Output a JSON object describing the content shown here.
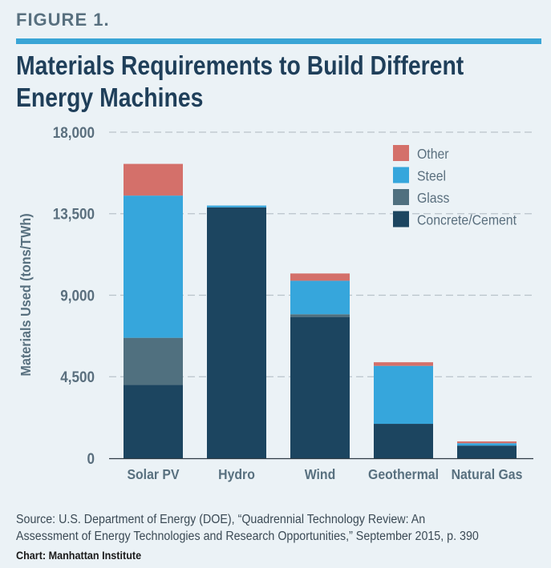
{
  "figure_label": "FIGURE 1.",
  "title": "Materials Requirements to Build Different Energy Machines",
  "source_line1": "Source: U.S. Department of Energy (DOE), “Quadrennial Technology Review: An",
  "source_line2": "Assessment of Energy Technologies and Research Opportunities,” September 2015, p. 390",
  "credit": "Chart: Manhattan Institute",
  "colors": {
    "Other": "#d4706a",
    "Steel": "#36a6dc",
    "Glass": "#50707f",
    "Concrete/Cement": "#1c4560",
    "rule": "#3aa5d6",
    "title": "#1f3f5a"
  },
  "chart_data": {
    "type": "bar",
    "stacked": true,
    "title": "Materials Requirements to Build Different Energy Machines",
    "xlabel": "",
    "ylabel": "Materials Used (tons/TWh)",
    "categories": [
      "Solar PV",
      "Hydro",
      "Wind",
      "Geothermal",
      "Natural Gas"
    ],
    "series": [
      {
        "name": "Concrete/Cement",
        "values": [
          4050,
          13850,
          7800,
          1900,
          700
        ]
      },
      {
        "name": "Glass",
        "values": [
          2600,
          0,
          150,
          0,
          0
        ]
      },
      {
        "name": "Steel",
        "values": [
          7850,
          100,
          1850,
          3200,
          130
        ]
      },
      {
        "name": "Other",
        "values": [
          1750,
          0,
          400,
          200,
          100
        ]
      }
    ],
    "legend_order": [
      "Other",
      "Steel",
      "Glass",
      "Concrete/Cement"
    ],
    "legend_position": "top-right",
    "ylim": [
      0,
      18000
    ],
    "yticks": [
      0,
      4500,
      9000,
      13500,
      18000
    ],
    "ytick_labels": [
      "0",
      "4,500",
      "9,000",
      "13,500",
      "18,000"
    ],
    "grid": "horizontal-dashed"
  }
}
